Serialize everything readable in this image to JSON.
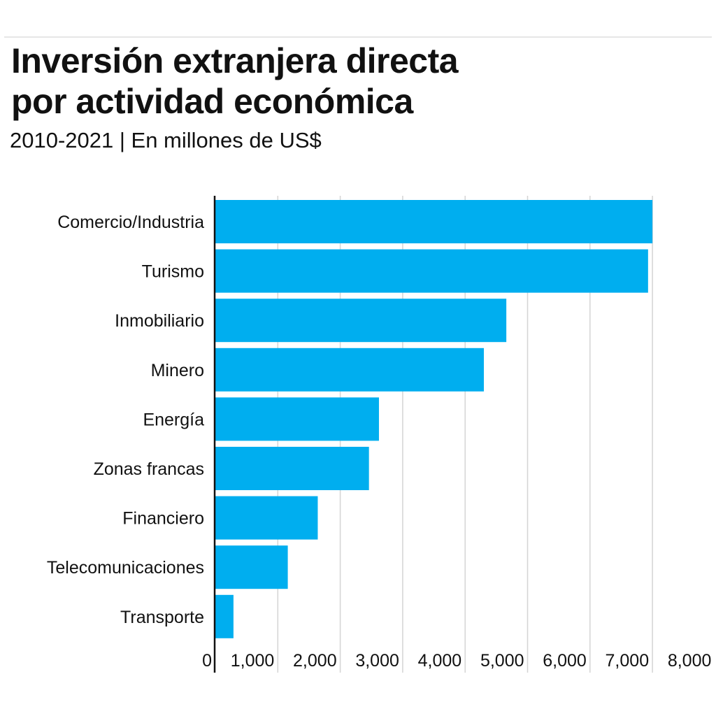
{
  "chart_data": {
    "type": "bar",
    "orientation": "horizontal",
    "title": "Inversión extranjera directa por actividad económica",
    "title_lines": [
      "Inversión extranjera directa",
      "por actividad económica"
    ],
    "subtitle": "2010-2021 | En millones de US$",
    "xlabel": "",
    "ylabel": "",
    "xlim": [
      0,
      8000
    ],
    "grid": true,
    "bar_color": "#00AEEF",
    "categories": [
      "Comercio/Industria",
      "Turismo",
      "Inmobiliario",
      "Minero",
      "Energía",
      "Zonas francas",
      "Financiero",
      "Telecomunicaciones",
      "Transporte"
    ],
    "values": [
      7000,
      6930,
      4660,
      4300,
      2620,
      2460,
      1640,
      1160,
      290
    ],
    "ticks": [
      0,
      1000,
      2000,
      3000,
      4000,
      5000,
      6000,
      7000,
      8000
    ],
    "tick_labels": [
      "0",
      "1,000",
      "2,000",
      "3,000",
      "4,000",
      "5,000",
      "6,000",
      "7,000",
      "8,000"
    ]
  }
}
